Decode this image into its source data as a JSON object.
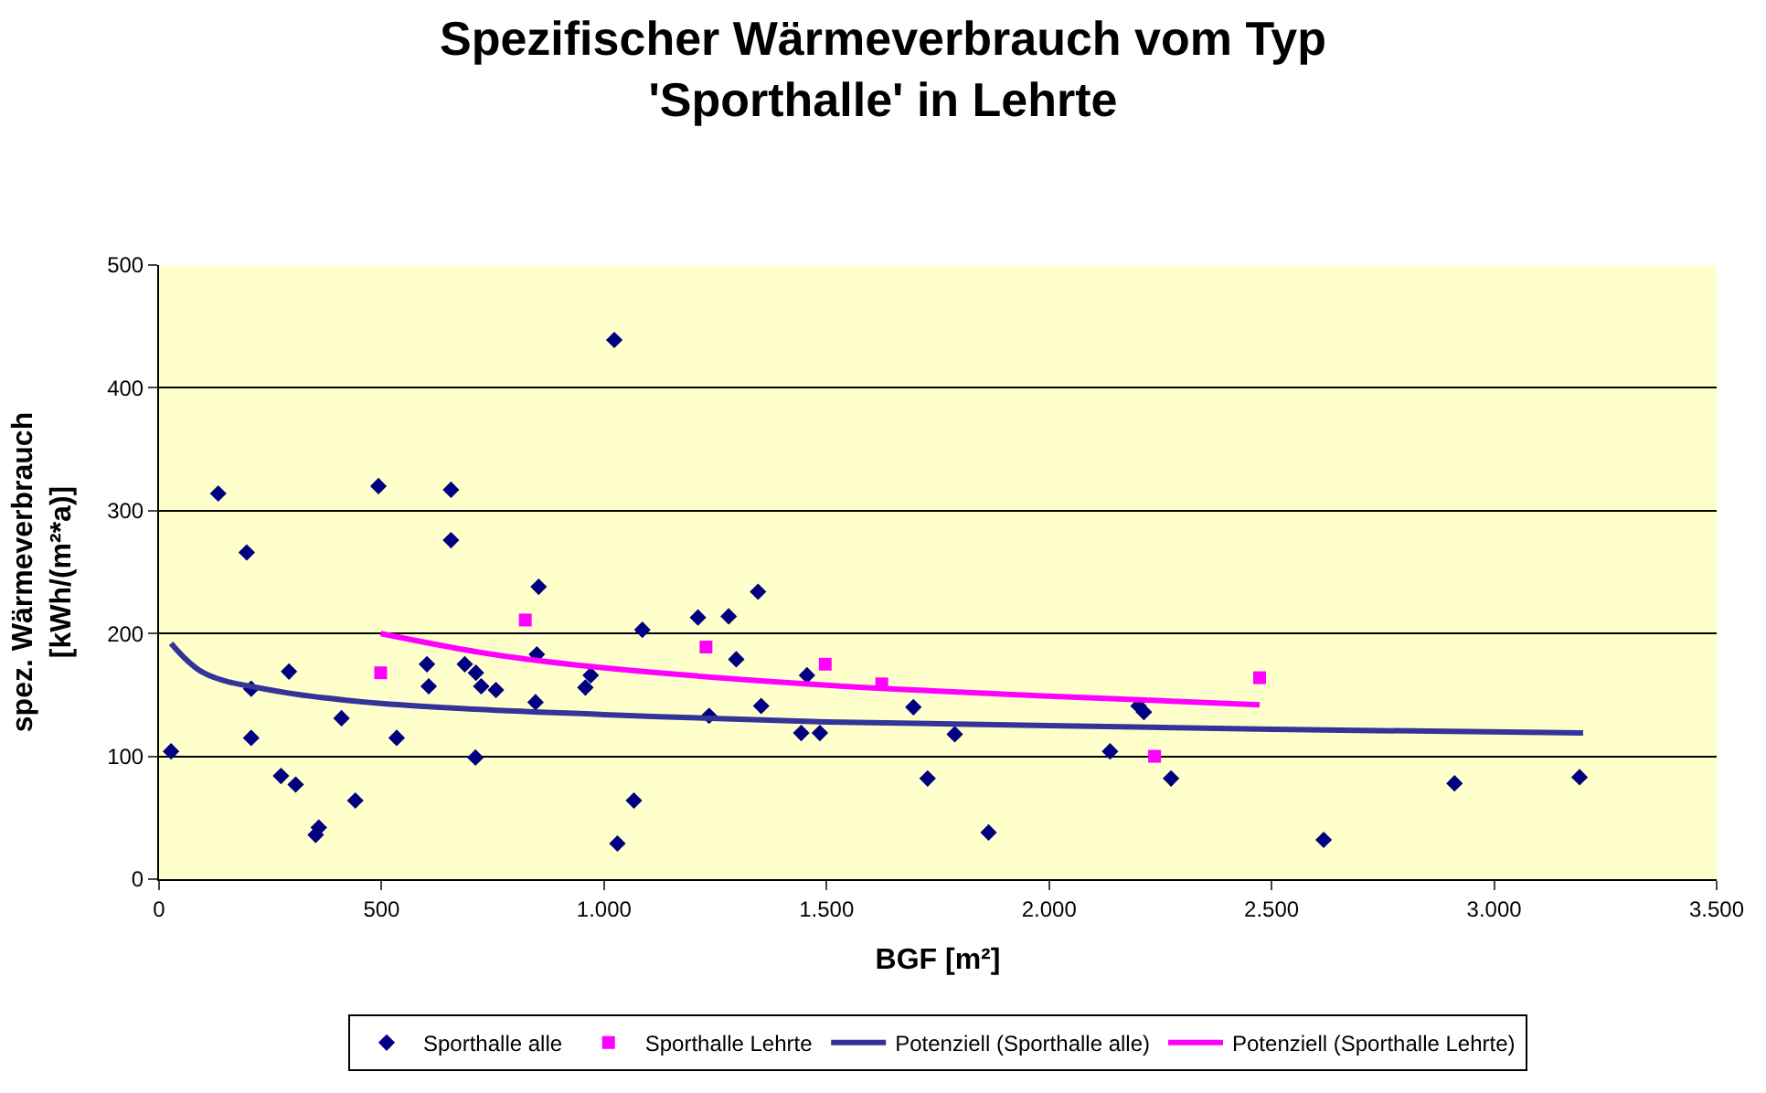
{
  "chart_data": {
    "type": "scatter",
    "title": "Spezifischer Wärmeverbrauch vom Typ\n'Sporthalle' in Lehrte",
    "xlabel": "BGF [m²]",
    "ylabel": "spez. Wärmeverbrauch\n[kWh/(m²*a)]",
    "xlim": [
      0,
      3500
    ],
    "ylim": [
      0,
      500
    ],
    "xticks": [
      0,
      500,
      {
        "value": 1000,
        "label": "1.000"
      },
      {
        "value": 1500,
        "label": "1.500"
      },
      {
        "value": 2000,
        "label": "2.000"
      },
      {
        "value": 2500,
        "label": "2.500"
      },
      {
        "value": 3000,
        "label": "3.000"
      },
      {
        "value": 3500,
        "label": "3.500"
      }
    ],
    "yticks": [
      0,
      100,
      200,
      300,
      400,
      500
    ],
    "grid": "y",
    "legend": "bottom",
    "series": [
      {
        "name": "Sporthalle alle",
        "marker": "diamond",
        "color": "#000080",
        "x": [
          27,
          133,
          197,
          207,
          207,
          292,
          274,
          307,
          410,
          441,
          359,
          352,
          493,
          534,
          602,
          606,
          656,
          656,
          687,
          712,
          724,
          711,
          757,
          846,
          849,
          853,
          958,
          970,
          1023,
          1030,
          1067,
          1086,
          1211,
          1236,
          1280,
          1297,
          1346,
          1353,
          1443,
          1456,
          1485,
          1695,
          1727,
          1788,
          1864,
          2137,
          2201,
          2213,
          2274,
          2617,
          2911,
          3192
        ],
        "values": [
          104,
          314,
          266,
          155,
          115,
          169,
          84,
          77,
          131,
          64,
          42,
          36,
          320,
          115,
          175,
          157,
          317,
          276,
          175,
          168,
          157,
          99,
          154,
          144,
          183,
          238,
          156,
          166,
          439,
          29,
          64,
          203,
          213,
          133,
          214,
          179,
          234,
          141,
          119,
          166,
          119,
          140,
          82,
          118,
          38,
          104,
          141,
          136,
          82,
          32,
          78,
          83
        ]
      },
      {
        "name": "Sporthalle Lehrte",
        "marker": "square",
        "color": "#ff00ff",
        "x": [
          498,
          823,
          1229,
          1497,
          1624,
          2237,
          2473
        ],
        "values": [
          168,
          211,
          189,
          175,
          159,
          100,
          164
        ]
      },
      {
        "name": "Potenziell (Sporthalle alle)",
        "type": "line",
        "marker": "none",
        "color": "#333399",
        "x": [
          27,
          100,
          250,
          500,
          1000,
          1500,
          2000,
          2500,
          3200
        ],
        "values": [
          192,
          168,
          154,
          143,
          134,
          128,
          125,
          122,
          119
        ]
      },
      {
        "name": "Potenziell (Sporthalle Lehrte)",
        "type": "line",
        "marker": "none",
        "color": "#ff00ff",
        "x": [
          498,
          750,
          1000,
          1500,
          2000,
          2473
        ],
        "values": [
          200,
          183,
          172,
          158,
          149,
          142
        ]
      }
    ]
  }
}
